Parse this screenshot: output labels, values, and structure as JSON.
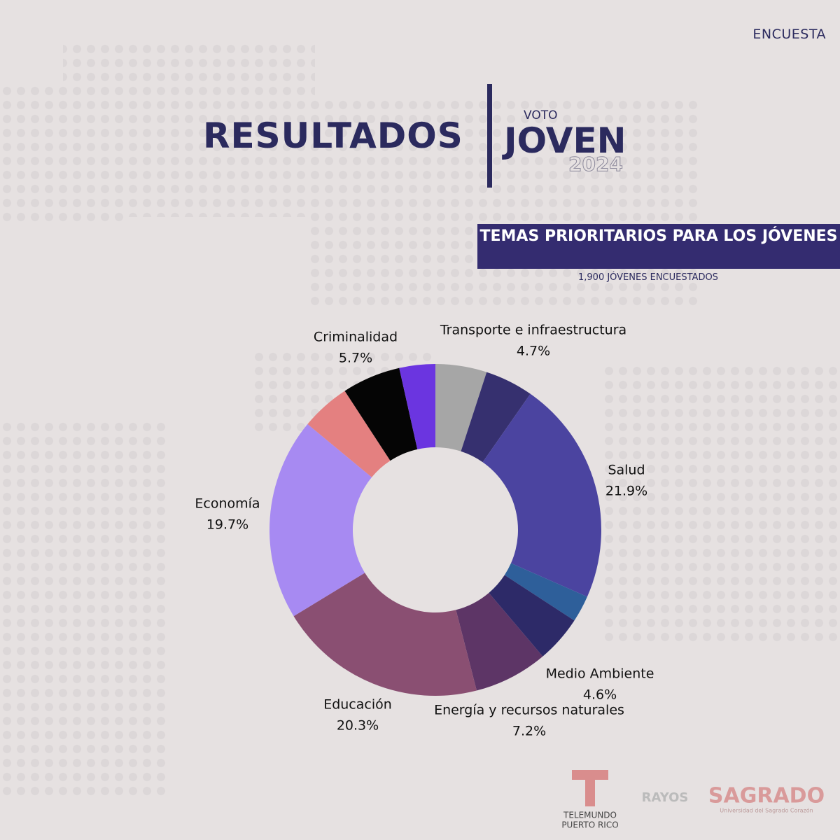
{
  "header": {
    "tag": "ENCUESTA",
    "title": "RESULTADOS",
    "brand_small": "VOTO",
    "brand": "JOVEN",
    "year": "2024"
  },
  "chart_data": {
    "type": "pie",
    "title": "TEMAS PRIORITARIOS PARA LOS JÓVENES",
    "subtitle": "1,900 JÓVENES ENCUESTADOS",
    "categories": [
      null,
      "Transporte e infraestructura",
      "Salud",
      null,
      "Medio Ambiente",
      "Energía y recursos naturales",
      "Educación",
      "Economía",
      null,
      "Criminalidad",
      null
    ],
    "values": [
      5.0,
      4.7,
      21.9,
      2.6,
      4.6,
      7.2,
      20.3,
      19.7,
      4.8,
      5.7,
      3.5
    ],
    "value_labels": [
      null,
      "4.7%",
      "21.9%",
      null,
      "4.6%",
      "7.2%",
      "20.3%",
      "19.7%",
      null,
      "5.7%",
      null
    ],
    "colors": [
      "#a6a6a6",
      "#36306f",
      "#4b44a0",
      "#2e5f9a",
      "#2d2a68",
      "#5d3566",
      "#8a4f72",
      "#a78af2",
      "#e48080",
      "#050505",
      "#6b35e0"
    ]
  },
  "footer": {
    "logos": [
      "TELEMUNDO",
      "PUERTO RICO",
      "RAYOS",
      "SAGRADO",
      "Universidad del Sagrado Corazón"
    ]
  }
}
